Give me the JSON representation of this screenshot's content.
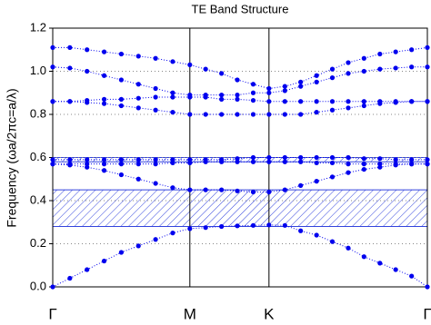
{
  "chart_data": {
    "type": "band-structure",
    "title": "TE Band Structure",
    "y_label": "Frequency (ωa/2πc=a/λ)",
    "color": "#0000ee",
    "gap_color": "#3344dd",
    "grid": true,
    "xlim": [
      0,
      2.732
    ],
    "xticks": [
      {
        "value": 0,
        "label": "Γ"
      },
      {
        "value": 1,
        "label": "M"
      },
      {
        "value": 1.577,
        "label": "K"
      },
      {
        "value": 2.732,
        "label": "Γ"
      }
    ],
    "ylim": [
      0,
      1.2
    ],
    "yticks": [
      {
        "value": 0,
        "label": "0.0"
      },
      {
        "value": 0.2,
        "label": "0.2"
      },
      {
        "value": 0.4,
        "label": "0.4"
      },
      {
        "value": 0.6,
        "label": "0.6"
      },
      {
        "value": 0.8,
        "label": "0.8"
      },
      {
        "value": 1,
        "label": "1.0"
      },
      {
        "value": 1.2,
        "label": "1.2"
      }
    ],
    "gaps": [
      [
        0.28,
        0.45
      ],
      [
        0.58,
        0.6
      ]
    ],
    "x": [
      0,
      0.125,
      0.25,
      0.375,
      0.5,
      0.625,
      0.75,
      0.875,
      1,
      1.115,
      1.231,
      1.346,
      1.462,
      1.577,
      1.693,
      1.808,
      1.924,
      2.039,
      2.155,
      2.27,
      2.386,
      2.501,
      2.617,
      2.732
    ],
    "series": [
      {
        "values": [
          0,
          0.04,
          0.08,
          0.12,
          0.16,
          0.19,
          0.22,
          0.25,
          0.27,
          0.275,
          0.28,
          0.283,
          0.285,
          0.287,
          0.285,
          0.26,
          0.24,
          0.21,
          0.18,
          0.14,
          0.11,
          0.08,
          0.05,
          0
        ]
      },
      {
        "values": [
          0.57,
          0.565,
          0.555,
          0.54,
          0.52,
          0.5,
          0.48,
          0.46,
          0.45,
          0.45,
          0.45,
          0.445,
          0.44,
          0.44,
          0.45,
          0.47,
          0.49,
          0.51,
          0.53,
          0.545,
          0.555,
          0.565,
          0.57,
          0.57
        ]
      },
      {
        "values": [
          0.57,
          0.57,
          0.57,
          0.57,
          0.57,
          0.57,
          0.57,
          0.575,
          0.575,
          0.58,
          0.58,
          0.58,
          0.58,
          0.58,
          0.58,
          0.58,
          0.575,
          0.575,
          0.57,
          0.57,
          0.57,
          0.57,
          0.57,
          0.57
        ]
      },
      {
        "values": [
          0.59,
          0.59,
          0.59,
          0.59,
          0.59,
          0.59,
          0.59,
          0.59,
          0.59,
          0.59,
          0.59,
          0.595,
          0.6,
          0.6,
          0.6,
          0.6,
          0.6,
          0.6,
          0.6,
          0.595,
          0.595,
          0.59,
          0.59,
          0.59
        ]
      },
      {
        "values": [
          0.86,
          0.86,
          0.855,
          0.85,
          0.84,
          0.83,
          0.82,
          0.81,
          0.8,
          0.8,
          0.8,
          0.8,
          0.8,
          0.8,
          0.8,
          0.8,
          0.81,
          0.82,
          0.83,
          0.84,
          0.85,
          0.855,
          0.86,
          0.86
        ]
      },
      {
        "values": [
          0.86,
          0.86,
          0.865,
          0.87,
          0.87,
          0.875,
          0.88,
          0.88,
          0.88,
          0.88,
          0.87,
          0.87,
          0.865,
          0.86,
          0.86,
          0.86,
          0.86,
          0.86,
          0.86,
          0.86,
          0.86,
          0.86,
          0.86,
          0.86
        ]
      },
      {
        "values": [
          1.02,
          1.015,
          1.0,
          0.98,
          0.96,
          0.94,
          0.92,
          0.9,
          0.89,
          0.89,
          0.89,
          0.89,
          0.9,
          0.9,
          0.91,
          0.93,
          0.95,
          0.97,
          0.99,
          1.0,
          1.01,
          1.015,
          1.02,
          1.02
        ]
      },
      {
        "values": [
          1.11,
          1.11,
          1.1,
          1.09,
          1.08,
          1.07,
          1.06,
          1.045,
          1.03,
          1.01,
          0.99,
          0.96,
          0.94,
          0.92,
          0.93,
          0.95,
          0.98,
          1.01,
          1.04,
          1.06,
          1.08,
          1.09,
          1.1,
          1.11
        ]
      }
    ]
  }
}
